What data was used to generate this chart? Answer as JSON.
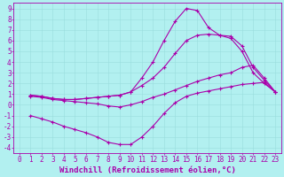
{
  "background_color": "#b2f0f0",
  "grid_color": "#99dddd",
  "line_color": "#aa00aa",
  "marker": "+",
  "markersize": 3.5,
  "linewidth": 0.8,
  "xlabel": "Windchill (Refroidissement éolien,°C)",
  "xlabel_fontsize": 6.5,
  "tick_fontsize": 5.5,
  "xlim": [
    -0.5,
    23.5
  ],
  "ylim": [
    -4.5,
    9.5
  ],
  "xticks": [
    0,
    1,
    2,
    3,
    4,
    5,
    6,
    7,
    8,
    9,
    10,
    11,
    12,
    13,
    14,
    15,
    16,
    17,
    18,
    19,
    20,
    21,
    22,
    23
  ],
  "yticks": [
    -4,
    -3,
    -2,
    -1,
    0,
    1,
    2,
    3,
    4,
    5,
    6,
    7,
    8,
    9
  ],
  "curves": [
    {
      "x": [
        1,
        2,
        3,
        4,
        5,
        6,
        7,
        8,
        9,
        10,
        11,
        12,
        13,
        14,
        15,
        16,
        17,
        18,
        19,
        20,
        21,
        22,
        23
      ],
      "y": [
        -1.0,
        -1.3,
        -1.6,
        -2.0,
        -2.3,
        -2.6,
        -3.0,
        -3.5,
        -3.7,
        -3.7,
        -3.0,
        -2.0,
        -0.8,
        0.2,
        0.8,
        1.1,
        1.3,
        1.5,
        1.7,
        1.9,
        2.0,
        2.1,
        1.2
      ]
    },
    {
      "x": [
        1,
        2,
        3,
        4,
        5,
        6,
        7,
        8,
        9,
        10,
        11,
        12,
        13,
        14,
        15,
        16,
        17,
        18,
        19,
        20,
        21,
        22,
        23
      ],
      "y": [
        0.8,
        0.7,
        0.5,
        0.4,
        0.3,
        0.2,
        0.1,
        -0.1,
        -0.2,
        0.0,
        0.3,
        0.7,
        1.0,
        1.4,
        1.8,
        2.2,
        2.5,
        2.8,
        3.0,
        3.5,
        3.7,
        2.5,
        1.2
      ]
    },
    {
      "x": [
        1,
        2,
        3,
        4,
        5,
        6,
        7,
        8,
        9,
        10,
        11,
        12,
        13,
        14,
        15,
        16,
        17,
        18,
        19,
        20,
        21,
        22,
        23
      ],
      "y": [
        0.9,
        0.8,
        0.6,
        0.5,
        0.5,
        0.6,
        0.7,
        0.8,
        0.9,
        1.2,
        1.8,
        2.5,
        3.5,
        4.8,
        6.0,
        6.5,
        6.6,
        6.5,
        6.4,
        5.5,
        3.5,
        2.3,
        1.2
      ]
    },
    {
      "x": [
        1,
        2,
        3,
        4,
        5,
        6,
        7,
        8,
        9,
        10,
        11,
        12,
        13,
        14,
        15,
        16,
        17,
        18,
        19,
        20,
        21,
        22,
        23
      ],
      "y": [
        0.9,
        0.8,
        0.6,
        0.5,
        0.5,
        0.6,
        0.7,
        0.8,
        0.9,
        1.2,
        2.5,
        4.0,
        6.0,
        7.8,
        9.0,
        8.8,
        7.2,
        6.5,
        6.2,
        5.0,
        3.0,
        2.0,
        1.2
      ]
    }
  ]
}
